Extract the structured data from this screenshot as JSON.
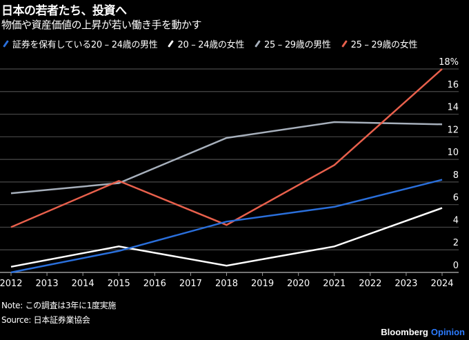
{
  "header": {
    "title": "日本の若者たち、投資へ",
    "subtitle": "物価や資産価値の上昇が若い働き手を動かす"
  },
  "footer": {
    "note": "Note: この調査は3年に1度実施",
    "source": "Source: 日本証券業協会",
    "brand_main": "Bloomberg",
    "brand_sub": "Opinion",
    "brand_main_color": "#ffffff",
    "brand_sub_color": "#2b7bff"
  },
  "chart_data": {
    "type": "line",
    "title": "日本の若者たち、投資へ",
    "subtitle": "物価や資産価値の上昇が若い働き手を動かす",
    "xlabel": "",
    "ylabel": "",
    "x": [
      2012,
      2015,
      2018,
      2021,
      2024
    ],
    "x_ticks": [
      "2012",
      "2013",
      "2014",
      "2015",
      "2016",
      "2017",
      "2018",
      "2019",
      "2020",
      "2021",
      "2022",
      "2023",
      "2024"
    ],
    "xlim": [
      2012,
      2024
    ],
    "ylim": [
      0,
      18
    ],
    "y_ticks": [
      "0",
      "2",
      "4",
      "6",
      "8",
      "10",
      "12",
      "14",
      "16",
      "18%"
    ],
    "y_tick_values": [
      0,
      2,
      4,
      6,
      8,
      10,
      12,
      14,
      16,
      18
    ],
    "y_axis_side": "right",
    "grid": true,
    "legend_position": "top",
    "series": [
      {
        "name": "証券を保有している20 – 24歳の男性",
        "color": "#2a6fdb",
        "values": [
          0.0,
          1.9,
          4.5,
          5.8,
          8.2
        ]
      },
      {
        "name": "20 – 24歳の女性",
        "color": "#ffffff",
        "values": [
          0.5,
          2.3,
          0.6,
          2.3,
          5.7
        ]
      },
      {
        "name": "25 – 29歳の男性",
        "color": "#a7b0bc",
        "values": [
          7.0,
          7.9,
          11.9,
          13.3,
          13.1
        ]
      },
      {
        "name": "25 – 29歳の女性",
        "color": "#e8604c",
        "values": [
          4.0,
          8.1,
          4.2,
          9.5,
          18.0
        ]
      }
    ]
  }
}
